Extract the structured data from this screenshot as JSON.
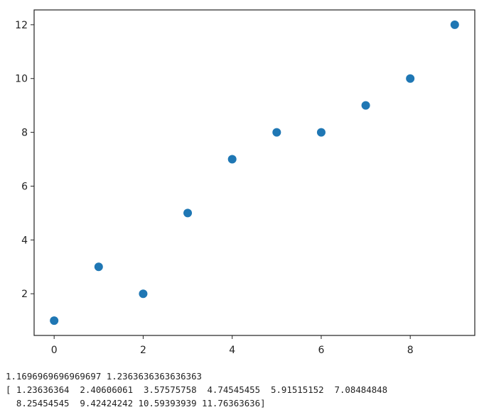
{
  "chart_data": {
    "type": "scatter",
    "x": [
      0,
      1,
      2,
      3,
      4,
      5,
      6,
      7,
      8,
      9
    ],
    "y": [
      1,
      3,
      2,
      5,
      7,
      8,
      8,
      9,
      10,
      12
    ],
    "title": "",
    "xlabel": "",
    "ylabel": "",
    "xlim": [
      -0.45,
      9.45
    ],
    "ylim": [
      0.45,
      12.55
    ],
    "xticks": [
      0,
      2,
      4,
      6,
      8
    ],
    "yticks": [
      2,
      4,
      6,
      8,
      10,
      12
    ],
    "grid": false,
    "marker_color": "#1f77b4"
  },
  "output": {
    "line1": "1.1696969696969697 1.2363636363636363",
    "line2": "[ 1.23636364  2.40606061  3.57575758  4.74545455  5.91515152  7.08484848",
    "line3": "  8.25454545  9.42424242 10.59393939 11.76363636]"
  }
}
